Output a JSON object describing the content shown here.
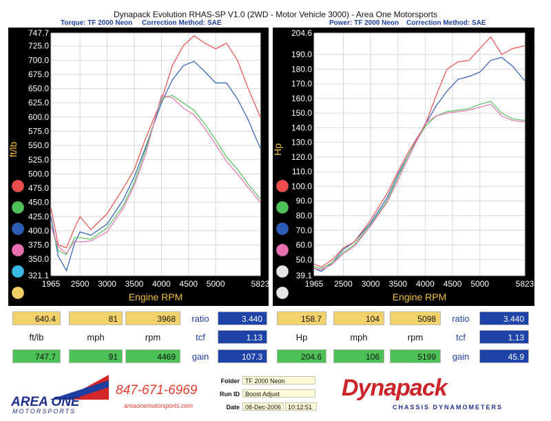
{
  "title": "Dynapack Evolution RHAS-SP V1.0  (2WD - Motor Vehicle 3000) - Area One Motorsports",
  "charts": {
    "left": {
      "header_series": "Torque: TF 2000 Neon",
      "header_correction": "Correction Method: SAE"
    },
    "right": {
      "header_series": "Power: TF 2000 Neon",
      "header_correction": "Correction Method: SAE"
    }
  },
  "colors": {
    "red": "#e84c4c",
    "green": "#4fc15a",
    "blue": "#2c5bb5",
    "pink": "#ea6fb0",
    "cyan": "#38b9e6",
    "yellow": "#f2cf63",
    "white": "#e6e6e6",
    "panel": "#000000",
    "plot_bg": "#ffffff",
    "grid": "#d6d6d6",
    "axis_text": "#f0c040"
  },
  "chart_data": [
    {
      "type": "line",
      "title": "Torque: TF 2000 Neon",
      "subtitle": "Correction Method: SAE",
      "xlabel": "Engine RPM",
      "ylabel": "ft/lb",
      "xlim": [
        1965,
        5823
      ],
      "ylim": [
        321.1,
        747.7
      ],
      "x_ticks": [
        "1965",
        "2500",
        "3000",
        "3500",
        "4000",
        "4500",
        "5000",
        "5823"
      ],
      "y_ticks": [
        "747.7",
        "725.0",
        "700.0",
        "675.0",
        "650.0",
        "625.0",
        "600.0",
        "575.0",
        "550.0",
        "525.0",
        "500.0",
        "475.0",
        "450.0",
        "425.0",
        "400.0",
        "375.0",
        "350.0",
        "321.1"
      ],
      "grid": true,
      "series": [
        {
          "color": "blue",
          "x": [
            1965,
            2100,
            2250,
            2400,
            2500,
            2700,
            3000,
            3300,
            3500,
            3700,
            4000,
            4200,
            4400,
            4600,
            4800,
            5000,
            5200,
            5400,
            5600,
            5823
          ],
          "y": [
            425,
            355,
            330,
            378,
            398,
            392,
            412,
            455,
            495,
            545,
            625,
            665,
            690,
            698,
            680,
            660,
            660,
            632,
            595,
            545
          ]
        },
        {
          "color": "red",
          "x": [
            1965,
            2100,
            2250,
            2400,
            2500,
            2700,
            3000,
            3300,
            3500,
            3700,
            4000,
            4200,
            4400,
            4600,
            4800,
            5000,
            5200,
            5400,
            5600,
            5823
          ],
          "y": [
            440,
            375,
            370,
            405,
            425,
            402,
            430,
            475,
            508,
            560,
            630,
            690,
            725,
            743,
            730,
            720,
            730,
            700,
            650,
            600
          ]
        },
        {
          "color": "green",
          "x": [
            1965,
            2100,
            2250,
            2400,
            2500,
            2700,
            3000,
            3300,
            3500,
            3700,
            4000,
            4200,
            4400,
            4600,
            4800,
            5000,
            5200,
            5400,
            5600,
            5823
          ],
          "y": [
            410,
            365,
            358,
            388,
            388,
            385,
            405,
            445,
            485,
            540,
            633,
            638,
            625,
            612,
            588,
            560,
            530,
            508,
            482,
            456
          ]
        },
        {
          "color": "pink",
          "x": [
            1965,
            2100,
            2250,
            2400,
            2500,
            2700,
            3000,
            3300,
            3500,
            3700,
            4000,
            4200,
            4400,
            4600,
            4800,
            5000,
            5200,
            5400,
            5600,
            5823
          ],
          "y": [
            408,
            372,
            360,
            382,
            380,
            382,
            398,
            440,
            480,
            532,
            638,
            634,
            616,
            604,
            580,
            552,
            522,
            500,
            476,
            450
          ]
        }
      ]
    },
    {
      "type": "line",
      "title": "Power: TF 2000 Neon",
      "subtitle": "Correction Method: SAE",
      "xlabel": "Engine RPM",
      "ylabel": "Hp",
      "xlim": [
        1965,
        5823
      ],
      "ylim": [
        39.1,
        204.6
      ],
      "x_ticks": [
        "1965",
        "2500",
        "3000",
        "3500",
        "4000",
        "4500",
        "5000",
        "5823"
      ],
      "y_ticks": [
        "204.6",
        "190.0",
        "180.0",
        "170.0",
        "160.0",
        "150.0",
        "140.0",
        "130.0",
        "120.0",
        "110.0",
        "100.0",
        "90.0",
        "80.0",
        "70.0",
        "60.0",
        "50.0",
        "39.1"
      ],
      "grid": true,
      "series": [
        {
          "color": "blue",
          "x": [
            1965,
            2100,
            2300,
            2500,
            2700,
            3000,
            3300,
            3500,
            3700,
            4000,
            4200,
            4400,
            4600,
            4800,
            5000,
            5200,
            5400,
            5600,
            5823
          ],
          "y": [
            44,
            42,
            48,
            57,
            62,
            75,
            92,
            108,
            122,
            142,
            155,
            165,
            173,
            175,
            178,
            186,
            188,
            182,
            172
          ]
        },
        {
          "color": "red",
          "x": [
            1965,
            2100,
            2300,
            2500,
            2700,
            3000,
            3300,
            3500,
            3700,
            4000,
            4200,
            4400,
            4600,
            4800,
            5000,
            5200,
            5400,
            5600,
            5823
          ],
          "y": [
            47,
            45,
            50,
            58,
            62,
            77,
            95,
            110,
            124,
            142,
            162,
            180,
            185,
            186,
            194,
            202,
            190,
            194,
            196
          ]
        },
        {
          "color": "green",
          "x": [
            1965,
            2100,
            2300,
            2500,
            2700,
            3000,
            3300,
            3500,
            3700,
            4000,
            4200,
            4400,
            4600,
            4800,
            5000,
            5200,
            5400,
            5600,
            5823
          ],
          "y": [
            45,
            44,
            48,
            55,
            60,
            74,
            90,
            106,
            122,
            141,
            148,
            151,
            152,
            153,
            156,
            158,
            150,
            146,
            145
          ]
        },
        {
          "color": "pink",
          "x": [
            1965,
            2100,
            2300,
            2500,
            2700,
            3000,
            3300,
            3500,
            3700,
            4000,
            4200,
            4400,
            4600,
            4800,
            5000,
            5200,
            5400,
            5600,
            5823
          ],
          "y": [
            44,
            43,
            47,
            54,
            59,
            73,
            89,
            104,
            120,
            143,
            148,
            150,
            151,
            152,
            154,
            156,
            148,
            145,
            144
          ]
        }
      ]
    }
  ],
  "legend_dots": {
    "left": [
      "red",
      "green",
      "blue",
      "pink",
      "cyan",
      "yellow"
    ],
    "right": [
      "red",
      "green",
      "blue",
      "pink",
      "white",
      "white"
    ]
  },
  "readouts": {
    "left": {
      "top": [
        "640.4",
        "81",
        "3968"
      ],
      "labels": [
        "ft/lb",
        "mph",
        "rpm"
      ],
      "bottom": [
        "747.7",
        "91",
        "4469"
      ],
      "side_labels": [
        "ratio",
        "tcf",
        "gain"
      ],
      "side_values": [
        "3.440",
        "1.13",
        "107.3"
      ]
    },
    "right": {
      "top": [
        "158.7",
        "104",
        "5098"
      ],
      "labels": [
        "Hp",
        "mph",
        "rpm"
      ],
      "bottom": [
        "204.6",
        "106",
        "5199"
      ],
      "side_labels": [
        "ratio",
        "tcf",
        "gain"
      ],
      "side_values": [
        "3.440",
        "1.13",
        "45.9"
      ]
    }
  },
  "footer": {
    "logo_text": "AREA ONE",
    "logo_sub": "MOTORSPORTS",
    "phone": "847-671-6969",
    "website": "areaonemotorsports.com",
    "folder_label": "Folder",
    "folder_value": "TF 2000 Neon",
    "runid_label": "Run ID",
    "runid_value": "Boost Adjust",
    "date_label": "Date",
    "date_value": "08-Dec-2006",
    "time_value": "10:12:51",
    "brand": "Dynapack",
    "brand_sub": "CHASSIS  DYNAMOMETERS"
  }
}
